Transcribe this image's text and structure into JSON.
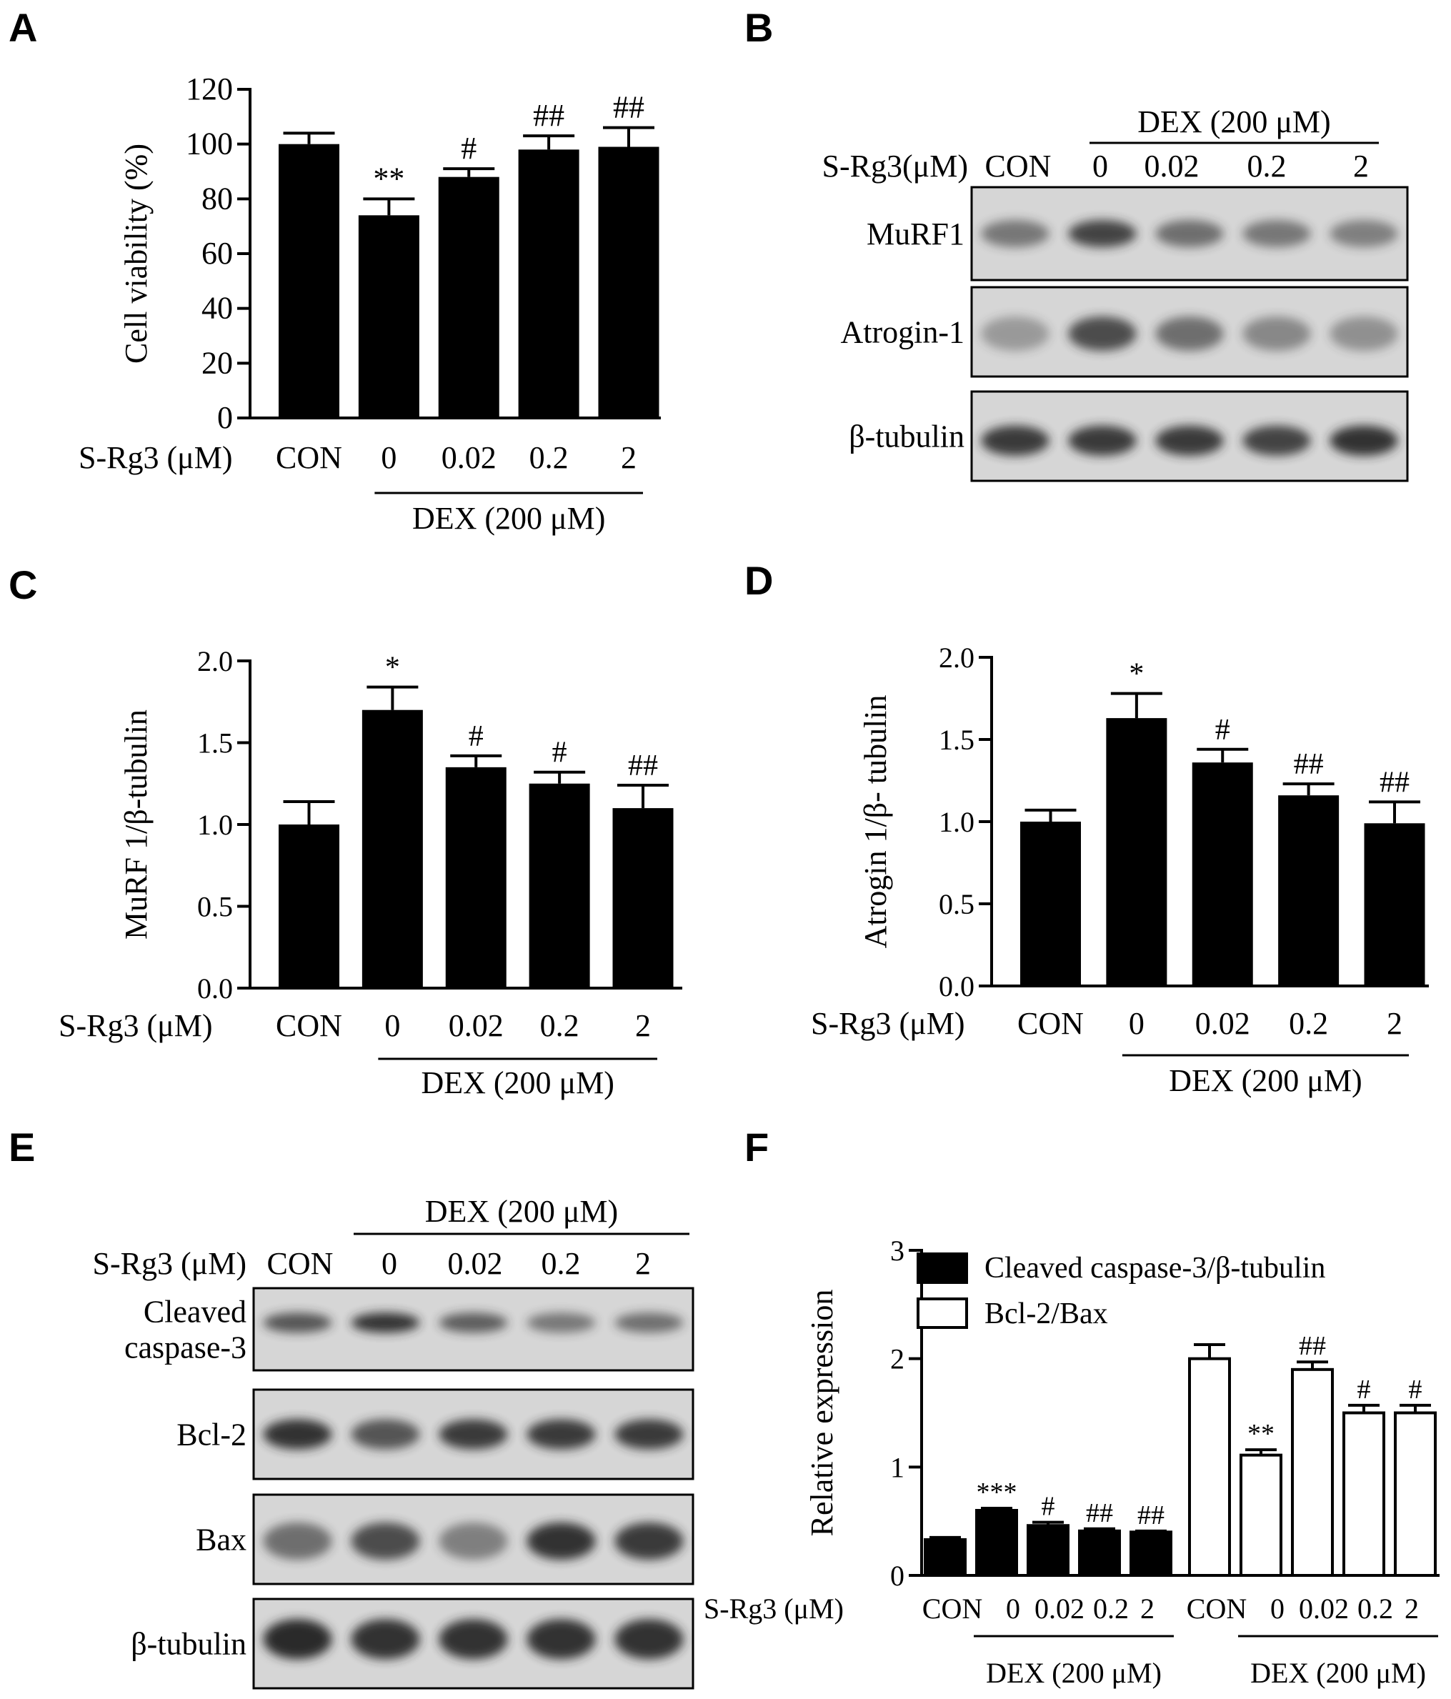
{
  "panels": {
    "A": "A",
    "B": "B",
    "C": "C",
    "D": "D",
    "E": "E",
    "F": "F"
  },
  "treatment_label": "S-Rg3 (μM)",
  "treatment_label_B": "S-Rg3(μM)",
  "dex_label": "DEX (200 μM)",
  "lanes": [
    "CON",
    "0",
    "0.02",
    "0.2",
    "2"
  ],
  "colors": {
    "bar": "#000000",
    "blot_bg": "#d6d6d6",
    "band": "#2a2a2a"
  },
  "chart_data": [
    {
      "panel": "A",
      "type": "bar",
      "categories": [
        "CON",
        "0",
        "0.02",
        "0.2",
        "2"
      ],
      "values": [
        100,
        74,
        88,
        98,
        99
      ],
      "errors": [
        4,
        6,
        3,
        5,
        7
      ],
      "annotations": [
        "",
        "**",
        "#",
        "##",
        "##"
      ],
      "ylabel": "Cell viability (%)",
      "ylim": [
        0,
        120
      ],
      "yticks": [
        "0",
        "20",
        "40",
        "60",
        "80",
        "100",
        "120"
      ],
      "group_label": "DEX (200 μM)"
    },
    {
      "panel": "C",
      "type": "bar",
      "categories": [
        "CON",
        "0",
        "0.02",
        "0.2",
        "2"
      ],
      "values": [
        1.0,
        1.7,
        1.35,
        1.25,
        1.1
      ],
      "errors": [
        0.14,
        0.14,
        0.07,
        0.07,
        0.14
      ],
      "annotations": [
        "",
        "*",
        "#",
        "#",
        "##"
      ],
      "ylabel": "MuRF 1/β-tubulin",
      "ylim": [
        0,
        2.0
      ],
      "yticks": [
        "0.0",
        "0.5",
        "1.0",
        "1.5",
        "2.0"
      ],
      "group_label": "DEX (200 μM)"
    },
    {
      "panel": "D",
      "type": "bar",
      "categories": [
        "CON",
        "0",
        "0.02",
        "0.2",
        "2"
      ],
      "values": [
        1.0,
        1.63,
        1.36,
        1.16,
        0.99
      ],
      "errors": [
        0.07,
        0.15,
        0.08,
        0.07,
        0.13
      ],
      "annotations": [
        "",
        "*",
        "#",
        "##",
        "##"
      ],
      "ylabel": "Atrogin 1/β- tubulin",
      "ylim": [
        0,
        2.0
      ],
      "yticks": [
        "0.0",
        "0.5",
        "1.0",
        "1.5",
        "2.0"
      ],
      "group_label": "DEX (200 μM)"
    },
    {
      "panel": "F",
      "type": "bar",
      "categories": [
        "CON",
        "0",
        "0.02",
        "0.2",
        "2"
      ],
      "series": [
        {
          "name": "Cleaved caspase-3/β-tubulin",
          "values": [
            0.33,
            0.6,
            0.46,
            0.41,
            0.4
          ],
          "errors": [
            0.02,
            0.02,
            0.03,
            0.02,
            0.01
          ],
          "annotations": [
            "",
            "***",
            "#",
            "##",
            "##"
          ],
          "fill": "#000000"
        },
        {
          "name": "Bcl-2/Bax",
          "values": [
            2.0,
            1.11,
            1.9,
            1.5,
            1.5
          ],
          "errors": [
            0.13,
            0.05,
            0.07,
            0.07,
            0.07
          ],
          "annotations": [
            "",
            "**",
            "##",
            "#",
            "#"
          ],
          "fill": "#ffffff"
        }
      ],
      "ylabel": "Relative expression",
      "ylim": [
        0,
        3
      ],
      "yticks": [
        "0",
        "1",
        "2",
        "3"
      ],
      "legend": "top-left",
      "group_label": "DEX (200 μM)",
      "group_label_compact": "DEX (200 μM)"
    }
  ],
  "blots": {
    "B": {
      "rows": [
        {
          "label": "MuRF1",
          "intensity": [
            0.55,
            0.85,
            0.6,
            0.55,
            0.5
          ]
        },
        {
          "label": "Atrogin-1",
          "intensity": [
            0.35,
            0.8,
            0.6,
            0.45,
            0.4
          ]
        },
        {
          "label": "β-tubulin",
          "intensity": [
            0.9,
            0.9,
            0.9,
            0.85,
            0.95
          ]
        }
      ]
    },
    "E": {
      "rows": [
        {
          "label_lines": [
            "Cleaved",
            "caspase-3"
          ],
          "intensity": [
            0.75,
            0.95,
            0.7,
            0.55,
            0.6
          ]
        },
        {
          "label_lines": [
            "Bcl-2"
          ],
          "intensity": [
            0.95,
            0.75,
            0.9,
            0.9,
            0.9
          ]
        },
        {
          "label_lines": [
            "Bax"
          ],
          "intensity": [
            0.6,
            0.8,
            0.5,
            0.95,
            0.9
          ]
        },
        {
          "label_lines": [
            "β-tubulin"
          ],
          "intensity": [
            1.0,
            0.95,
            0.95,
            0.95,
            0.95
          ]
        }
      ]
    }
  }
}
